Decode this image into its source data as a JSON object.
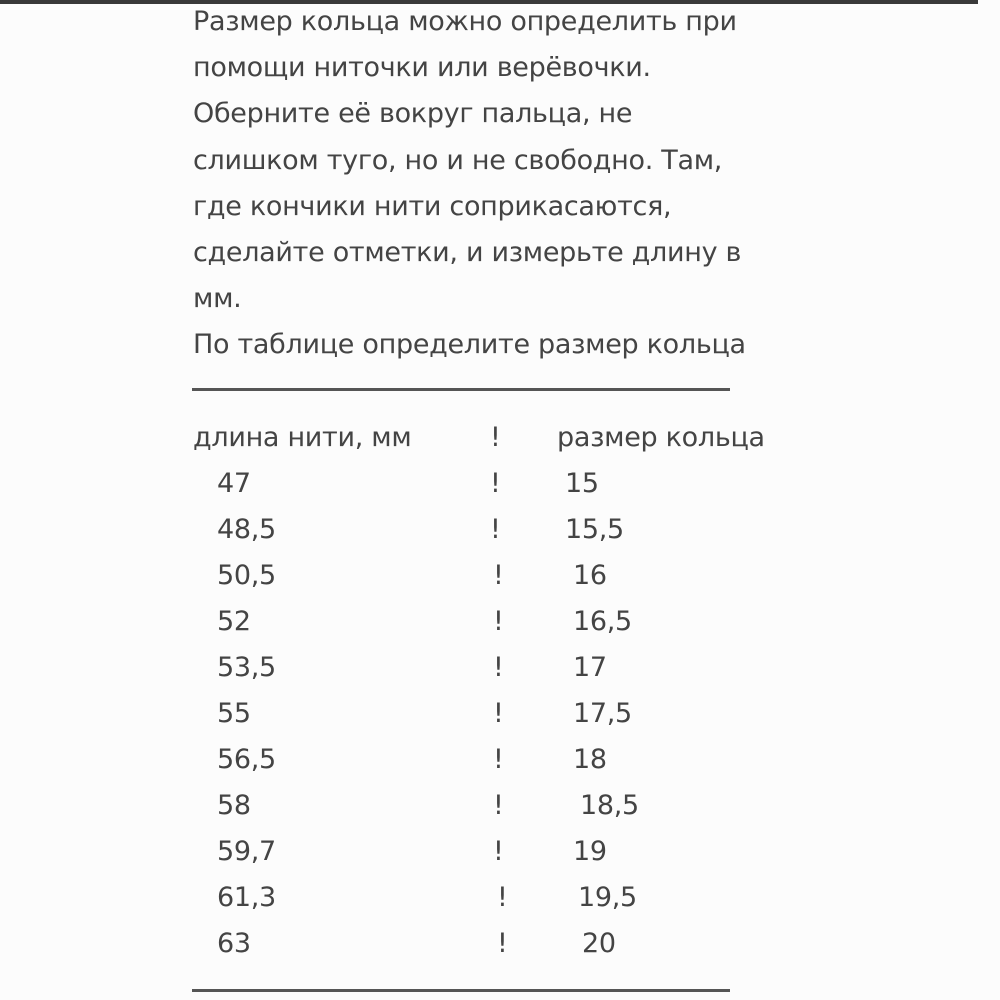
{
  "intro": [
    "Размер кольца можно определить при",
    "помощи ниточки или верёвочки.",
    "Оберните её вокруг пальца, не",
    "слишком туго, но и не свободно. Там,",
    "где кончики нити соприкасаются,",
    "сделайте отметки, и измерьте длину в",
    "мм.",
    "По таблице определите размер кольца"
  ],
  "divider_top": "——————————————",
  "divider_bottom": "——————————————",
  "table": {
    "headers": [
      "длина нити, мм",
      "!",
      "размер кольца"
    ],
    "rows": [
      [
        "47",
        "!",
        "15"
      ],
      [
        "48,5",
        "!",
        "15,5"
      ],
      [
        "50,5",
        "!",
        "16"
      ],
      [
        "52",
        "!",
        "16,5"
      ],
      [
        "53,5",
        "!",
        "17"
      ],
      [
        "55",
        "!",
        "17,5"
      ],
      [
        "56,5",
        "!",
        "18"
      ],
      [
        "58",
        "!",
        "18,5"
      ],
      [
        "59,7",
        "!",
        "19"
      ],
      [
        "61,3",
        "!",
        "19,5"
      ],
      [
        "63",
        "!",
        "20"
      ]
    ]
  }
}
